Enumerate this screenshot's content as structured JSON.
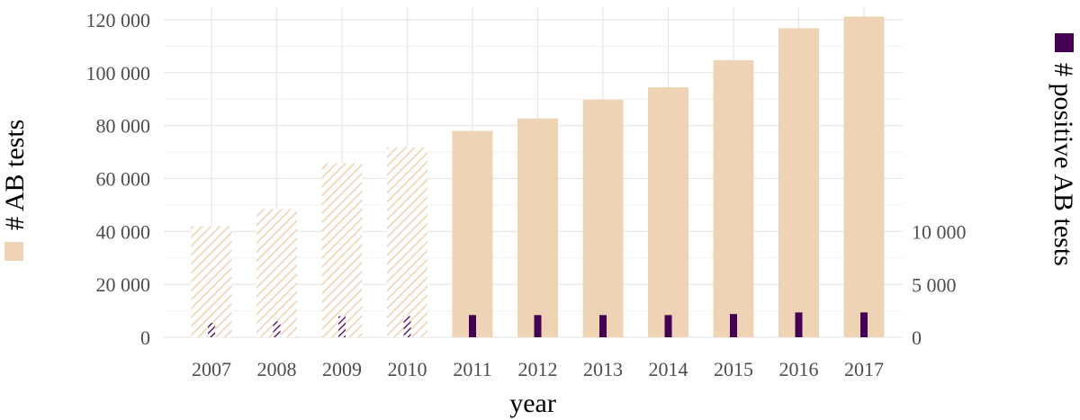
{
  "chart_data": {
    "type": "bar",
    "title": "",
    "xlabel": "year",
    "ylabel_left": "# AB tests",
    "ylabel_right": "# positive AB tests",
    "categories": [
      "2007",
      "2008",
      "2009",
      "2010",
      "2011",
      "2012",
      "2013",
      "2014",
      "2015",
      "2016",
      "2017"
    ],
    "series": [
      {
        "name": "# AB tests",
        "axis": "left",
        "color": "#eed4b4",
        "values": [
          42000,
          48500,
          65800,
          71800,
          78000,
          82700,
          89800,
          94500,
          104700,
          116800,
          121200
        ],
        "hatched": [
          true,
          true,
          true,
          true,
          false,
          false,
          false,
          false,
          false,
          false,
          false
        ]
      },
      {
        "name": "# positive AB tests",
        "axis": "right",
        "color": "#440154",
        "values": [
          1350,
          1500,
          2000,
          2000,
          2100,
          2100,
          2100,
          2100,
          2200,
          2350,
          2350
        ],
        "hatched": [
          true,
          true,
          true,
          true,
          false,
          false,
          false,
          false,
          false,
          false,
          false
        ]
      }
    ],
    "ylim_left": [
      0,
      122000
    ],
    "yticks_left": [
      0,
      20000,
      40000,
      60000,
      80000,
      100000,
      120000
    ],
    "ytick_labels_left": [
      "0",
      "20 000",
      "40 000",
      "60 000",
      "80 000",
      "100 000",
      "120 000"
    ],
    "yticks_right": [
      0,
      5000,
      10000
    ],
    "ytick_labels_right": [
      "0",
      "5 000",
      "10 000"
    ],
    "grid": true,
    "legend": "axis titles with color keys"
  }
}
